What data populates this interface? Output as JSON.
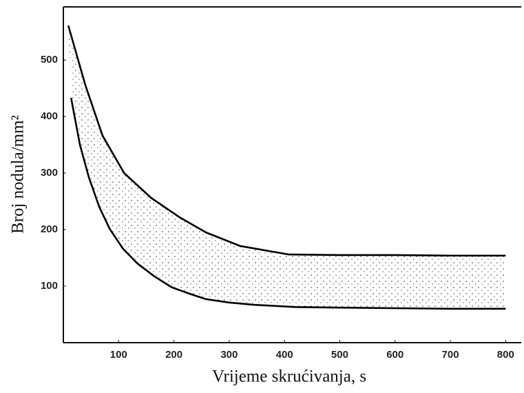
{
  "chart_data": {
    "type": "band",
    "x_label": "Vrijeme skrućivanja, s",
    "y_label": "Broj nodula/mm²",
    "xlim": [
      0,
      827
    ],
    "ylim": [
      0,
      594
    ],
    "xticks": [
      100,
      200,
      300,
      400,
      500,
      600,
      700,
      800
    ],
    "yticks": [
      100,
      200,
      300,
      400,
      500
    ],
    "series": [
      {
        "color": "#000000",
        "x": [
          9,
          40,
          71,
          110,
          159,
          210,
          258,
          320,
          408,
          500,
          600,
          700,
          800
        ],
        "values": [
          561,
          455,
          366,
          300,
          256,
          222,
          195,
          171,
          156,
          155,
          155,
          154,
          154
        ]
      },
      {
        "color": "#000000",
        "x": [
          14,
          30,
          46,
          65,
          84,
          108,
          134,
          165,
          196,
          230,
          258,
          300,
          345,
          420,
          500,
          600,
          700,
          800
        ],
        "values": [
          433,
          350,
          293,
          240,
          201,
          166,
          140,
          117,
          98,
          86,
          77,
          71,
          67,
          63,
          62,
          61,
          60,
          60
        ]
      }
    ]
  }
}
